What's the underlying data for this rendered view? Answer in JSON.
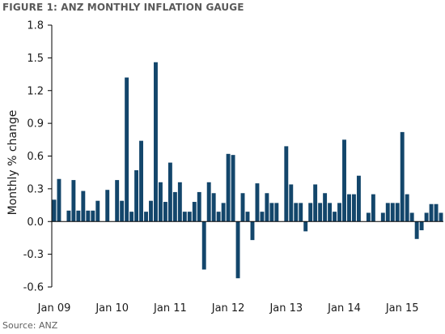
{
  "title": "FIGURE 1: ANZ MONTHLY INFLATION GAUGE",
  "source": "Source: ANZ",
  "chart_data": {
    "type": "bar",
    "ylabel": "Monthly % change",
    "xlabel": "",
    "ylim": [
      -0.6,
      1.8
    ],
    "yticks": [
      "-0.6",
      "-0.3",
      "0.0",
      "0.3",
      "0.6",
      "0.9",
      "1.2",
      "1.5",
      "1.8"
    ],
    "xtick_labels": [
      "Jan 09",
      "Jan 10",
      "Jan 11",
      "Jan 12",
      "Jan 13",
      "Jan 14",
      "Jan 15"
    ],
    "grid": false,
    "color": "#13466b",
    "start": "Jan 2009",
    "series": [
      {
        "values": [
          0.2,
          0.39,
          0.0,
          0.1,
          0.38,
          0.1,
          0.28,
          0.1,
          0.1,
          0.19,
          0.0,
          0.29,
          0.0,
          0.38,
          0.19,
          1.32,
          0.09,
          0.47,
          0.74,
          0.09,
          0.19,
          1.46,
          0.36,
          0.18,
          0.54,
          0.27,
          0.36,
          0.09,
          0.09,
          0.18,
          0.27,
          -0.44,
          0.36,
          0.26,
          0.09,
          0.17,
          0.62,
          0.61,
          -0.52,
          0.26,
          0.09,
          -0.17,
          0.35,
          0.09,
          0.26,
          0.17,
          0.17,
          0.0,
          0.69,
          0.34,
          0.17,
          0.17,
          -0.09,
          0.17,
          0.34,
          0.17,
          0.26,
          0.17,
          0.09,
          0.17,
          0.75,
          0.25,
          0.25,
          0.42,
          0.0,
          0.08,
          0.25,
          0.0,
          0.08,
          0.17,
          0.17,
          0.17,
          0.82,
          0.25,
          0.08,
          -0.16,
          -0.08,
          0.08,
          0.16,
          0.16,
          0.08
        ]
      }
    ]
  }
}
